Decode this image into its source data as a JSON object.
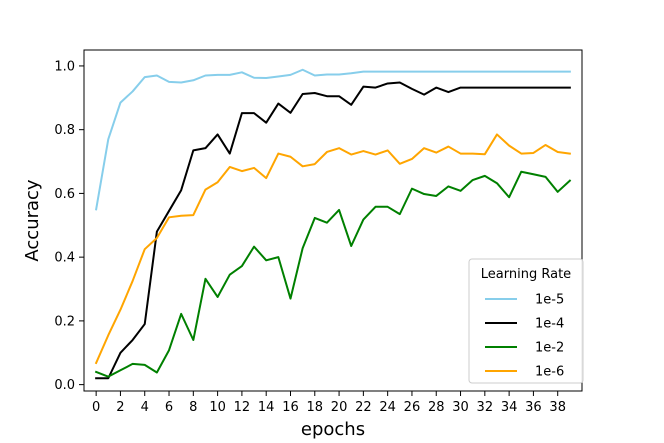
{
  "chart_data": {
    "type": "line",
    "xlabel": "epochs",
    "ylabel": "Accuracy",
    "xlim": [
      -1,
      40
    ],
    "ylim": [
      -0.02,
      1.05
    ],
    "xticks": [
      0,
      2,
      4,
      6,
      8,
      10,
      12,
      14,
      16,
      18,
      20,
      22,
      24,
      26,
      28,
      30,
      32,
      34,
      36,
      38
    ],
    "yticks": [
      "0.0",
      "0.2",
      "0.4",
      "0.6",
      "0.8",
      "1.0"
    ],
    "grid": false,
    "legend": {
      "title": "Learning Rate",
      "placement": "lower-right"
    },
    "x": [
      0,
      1,
      2,
      3,
      4,
      5,
      6,
      7,
      8,
      9,
      10,
      11,
      12,
      13,
      14,
      15,
      16,
      17,
      18,
      19,
      20,
      21,
      22,
      23,
      24,
      25,
      26,
      27,
      28,
      29,
      30,
      31,
      32,
      33,
      34,
      35,
      36,
      37,
      38,
      39
    ],
    "series": [
      {
        "name": "1e-5",
        "color": "#87ceeb",
        "values": [
          0.55,
          0.77,
          0.885,
          0.92,
          0.965,
          0.97,
          0.95,
          0.948,
          0.955,
          0.97,
          0.972,
          0.972,
          0.98,
          0.963,
          0.962,
          0.967,
          0.972,
          0.988,
          0.97,
          0.973,
          0.973,
          0.977,
          0.982,
          0.982,
          0.982,
          0.982,
          0.982,
          0.982,
          0.982,
          0.982,
          0.982,
          0.982,
          0.982,
          0.982,
          0.982,
          0.982,
          0.982,
          0.982,
          0.982,
          0.982
        ]
      },
      {
        "name": "1e-4",
        "color": "#000000",
        "values": [
          0.02,
          0.02,
          0.1,
          0.14,
          0.19,
          0.48,
          0.545,
          0.61,
          0.735,
          0.742,
          0.785,
          0.725,
          0.852,
          0.852,
          0.822,
          0.882,
          0.853,
          0.912,
          0.915,
          0.905,
          0.905,
          0.878,
          0.935,
          0.932,
          0.945,
          0.948,
          0.928,
          0.91,
          0.932,
          0.918,
          0.932,
          0.932,
          0.932,
          0.932,
          0.932,
          0.932,
          0.932,
          0.932,
          0.932,
          0.932
        ]
      },
      {
        "name": "1e-2",
        "color": "#008000",
        "values": [
          0.04,
          0.025,
          0.045,
          0.065,
          0.062,
          0.038,
          0.108,
          0.222,
          0.14,
          0.332,
          0.275,
          0.345,
          0.372,
          0.433,
          0.39,
          0.4,
          0.27,
          0.428,
          0.523,
          0.508,
          0.548,
          0.435,
          0.518,
          0.558,
          0.558,
          0.535,
          0.615,
          0.598,
          0.592,
          0.622,
          0.608,
          0.642,
          0.655,
          0.632,
          0.588,
          0.668,
          0.66,
          0.652,
          0.605,
          0.64
        ]
      },
      {
        "name": "1e-6",
        "color": "#ffa500",
        "values": [
          0.068,
          0.155,
          0.235,
          0.325,
          0.425,
          0.46,
          0.525,
          0.53,
          0.532,
          0.612,
          0.635,
          0.683,
          0.67,
          0.68,
          0.648,
          0.725,
          0.715,
          0.685,
          0.692,
          0.73,
          0.742,
          0.722,
          0.733,
          0.722,
          0.735,
          0.693,
          0.708,
          0.742,
          0.728,
          0.747,
          0.725,
          0.725,
          0.723,
          0.785,
          0.75,
          0.725,
          0.727,
          0.752,
          0.73,
          0.725
        ]
      }
    ]
  }
}
